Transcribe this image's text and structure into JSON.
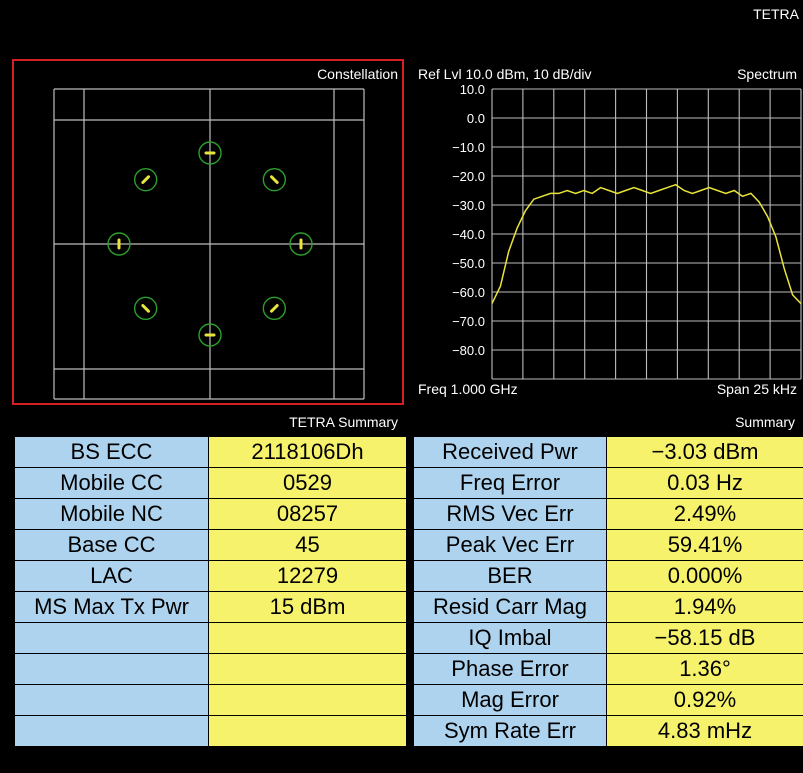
{
  "app_title": "TETRA",
  "colors": {
    "background": "#000000",
    "selected_border": "#d42020",
    "grid": "#bdbdbd",
    "trace": "#e8e43a",
    "symbol_circle": "#2aa02a",
    "label_cell": "#aed3ee",
    "value_cell": "#f6f26c"
  },
  "constellation": {
    "title": "Constellation",
    "selected": true
  },
  "spectrum": {
    "title": "Spectrum",
    "ref_level": "Ref Lvl 10.0 dBm,  10 dB/div",
    "freq": "Freq 1.000 GHz",
    "span": "Span 25 kHz",
    "y_ticks": [
      "10.0",
      "0.0",
      "−10.0",
      "−20.0",
      "−30.0",
      "−40.0",
      "−50.0",
      "−60.0",
      "−70.0",
      "−80.0"
    ]
  },
  "chart_data": [
    {
      "type": "scatter",
      "title": "Constellation",
      "x": [
        0,
        0.707,
        1,
        0.707,
        0,
        -0.707,
        -1,
        -0.707
      ],
      "y": [
        1,
        0.707,
        0,
        -0.707,
        -1,
        -0.707,
        0,
        0.707
      ],
      "grid": true
    },
    {
      "type": "line",
      "title": "Spectrum",
      "xlabel": "Freq 1.000 GHz",
      "span": "Span 25 kHz",
      "ylim": [
        -90,
        10
      ],
      "y_unit": "dBm",
      "y": [
        -64,
        -58,
        -46,
        -38,
        -32,
        -28,
        -27,
        -26,
        -26,
        -25,
        -26,
        -25,
        -26,
        -24,
        -25,
        -26,
        -25,
        -24,
        -25,
        -26,
        -25,
        -24,
        -23,
        -25,
        -26,
        -25,
        -24,
        -25,
        -26,
        -25,
        -27,
        -26,
        -29,
        -34,
        -41,
        -52,
        -61,
        -64
      ]
    }
  ],
  "tetra_summary": {
    "title": "TETRA Summary",
    "rows": [
      {
        "label": "BS ECC",
        "value": "2118106Dh"
      },
      {
        "label": "Mobile CC",
        "value": "0529"
      },
      {
        "label": "Mobile NC",
        "value": "08257"
      },
      {
        "label": "Base CC",
        "value": "45"
      },
      {
        "label": "LAC",
        "value": "12279"
      },
      {
        "label": "MS Max Tx Pwr",
        "value": "15 dBm"
      },
      {
        "label": "",
        "value": ""
      },
      {
        "label": "",
        "value": ""
      },
      {
        "label": "",
        "value": ""
      },
      {
        "label": "",
        "value": ""
      }
    ]
  },
  "summary": {
    "title": "Summary",
    "rows": [
      {
        "label": "Received Pwr",
        "value": "−3.03 dBm"
      },
      {
        "label": "Freq Error",
        "value": "0.03 Hz"
      },
      {
        "label": "RMS Vec Err",
        "value": "2.49%"
      },
      {
        "label": "Peak Vec Err",
        "value": "59.41%"
      },
      {
        "label": "BER",
        "value": "0.000%"
      },
      {
        "label": "Resid Carr Mag",
        "value": "1.94%"
      },
      {
        "label": "IQ Imbal",
        "value": "−58.15 dB"
      },
      {
        "label": "Phase Error",
        "value": "1.36°"
      },
      {
        "label": "Mag Error",
        "value": "0.92%"
      },
      {
        "label": "Sym Rate Err",
        "value": "4.83 mHz"
      }
    ]
  }
}
